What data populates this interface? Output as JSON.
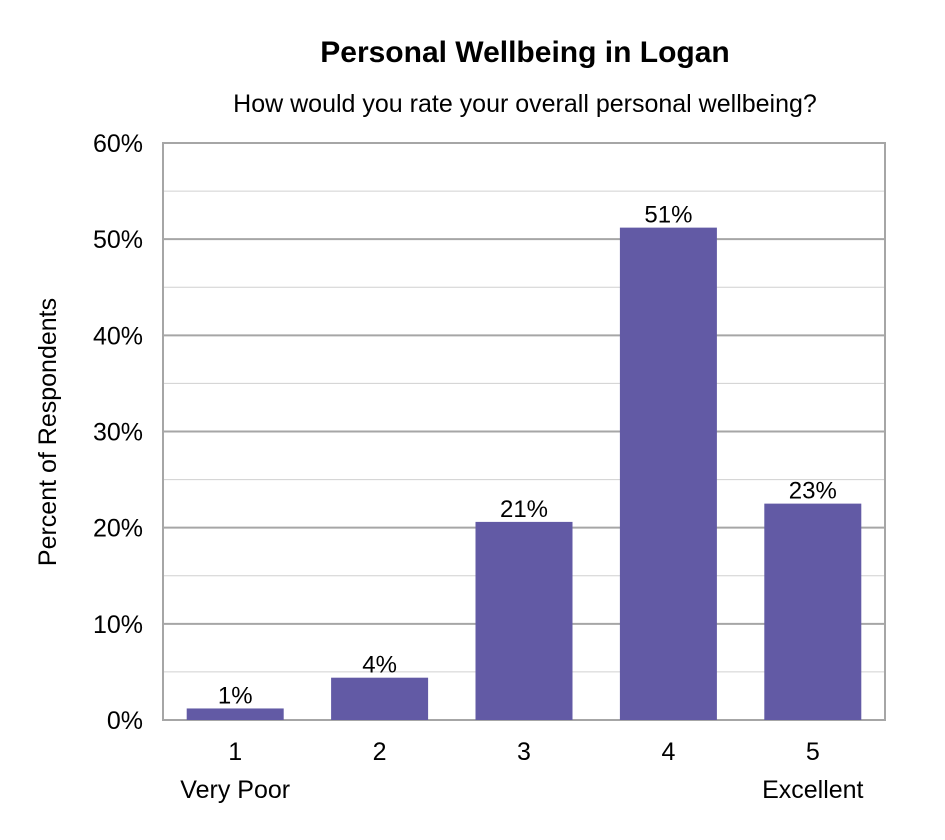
{
  "chart_data": {
    "type": "bar",
    "title": "Personal Wellbeing in Logan",
    "subtitle": "How would you rate your overall personal wellbeing?",
    "ylabel": "Percent of Respondents",
    "categories": [
      "1",
      "2",
      "3",
      "4",
      "5"
    ],
    "category_sublabels": [
      "Very Poor",
      "",
      "",
      "",
      "Excellent"
    ],
    "values": [
      1.2,
      4.4,
      20.6,
      51.2,
      22.5
    ],
    "data_labels": [
      "1%",
      "4%",
      "21%",
      "51%",
      "23%"
    ],
    "ylim": [
      0,
      60
    ],
    "yticks": [
      0,
      10,
      20,
      30,
      40,
      50,
      60
    ],
    "ytick_labels": [
      "0%",
      "10%",
      "20%",
      "30%",
      "40%",
      "50%",
      "60%"
    ],
    "grid": true,
    "bar_color": "#625aa5",
    "grid_color": "#b3b3b3"
  }
}
